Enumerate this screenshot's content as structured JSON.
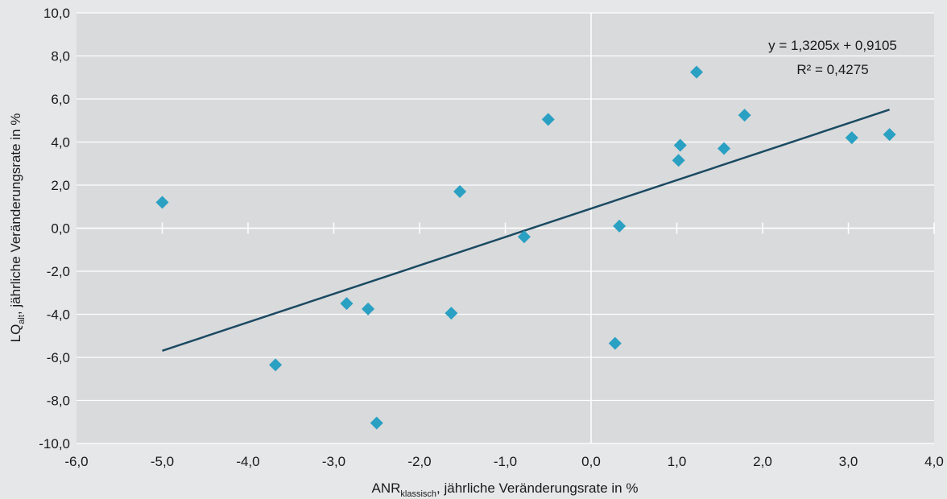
{
  "chart_data": {
    "type": "scatter",
    "x_label": {
      "main": "ANR",
      "sub": "klassisch",
      "rest": ", jährliche Veränderungsrate in %"
    },
    "y_label": {
      "main": "LQ",
      "sub": "alt",
      "rest": ", jährliche Veränderungsrate in %"
    },
    "xlim": [
      -6,
      4
    ],
    "ylim": [
      -10,
      10
    ],
    "x_ticks": [
      -6,
      -5,
      -4,
      -3,
      -2,
      -1,
      0,
      1,
      2,
      3,
      4
    ],
    "y_ticks": [
      -10,
      -8,
      -6,
      -4,
      -2,
      0,
      2,
      4,
      6,
      8,
      10
    ],
    "x_tick_labels": [
      "-6,0",
      "-5,0",
      "-4,0",
      "-3,0",
      "-2,0",
      "-1,0",
      "0,0",
      "1,0",
      "2,0",
      "3,0",
      "4,0"
    ],
    "y_tick_labels": [
      "-10,0",
      "-8,0",
      "-6,0",
      "-4,0",
      "-2,0",
      "0,0",
      "2,0",
      "4,0",
      "6,0",
      "8,0",
      "10,0"
    ],
    "grid": true,
    "colors": {
      "plot_background": "#d9dadb",
      "page_background": "#e6e7e8",
      "grid": "#ffffff",
      "marker": "#2aa0c3",
      "trendline": "#1b4a63"
    },
    "points": [
      {
        "x": -5.0,
        "y": 1.2
      },
      {
        "x": -3.68,
        "y": -6.35
      },
      {
        "x": -2.85,
        "y": -3.5
      },
      {
        "x": -2.6,
        "y": -3.75
      },
      {
        "x": -2.5,
        "y": -9.05
      },
      {
        "x": -1.63,
        "y": -3.95
      },
      {
        "x": -1.53,
        "y": 1.7
      },
      {
        "x": -0.78,
        "y": -0.4
      },
      {
        "x": -0.5,
        "y": 5.05
      },
      {
        "x": 0.28,
        "y": -5.35
      },
      {
        "x": 0.33,
        "y": 0.1
      },
      {
        "x": 1.02,
        "y": 3.15
      },
      {
        "x": 1.04,
        "y": 3.85
      },
      {
        "x": 1.23,
        "y": 7.25
      },
      {
        "x": 1.55,
        "y": 3.7
      },
      {
        "x": 1.79,
        "y": 5.25
      },
      {
        "x": 3.04,
        "y": 4.2
      },
      {
        "x": 3.48,
        "y": 4.35
      }
    ],
    "trendline": {
      "slope": 1.3205,
      "intercept": 0.9105,
      "x_range": [
        -5.0,
        3.48
      ],
      "equation_label": "y = 1,3205x + 0,9105",
      "r2_label": "R² = 0,4275"
    }
  }
}
